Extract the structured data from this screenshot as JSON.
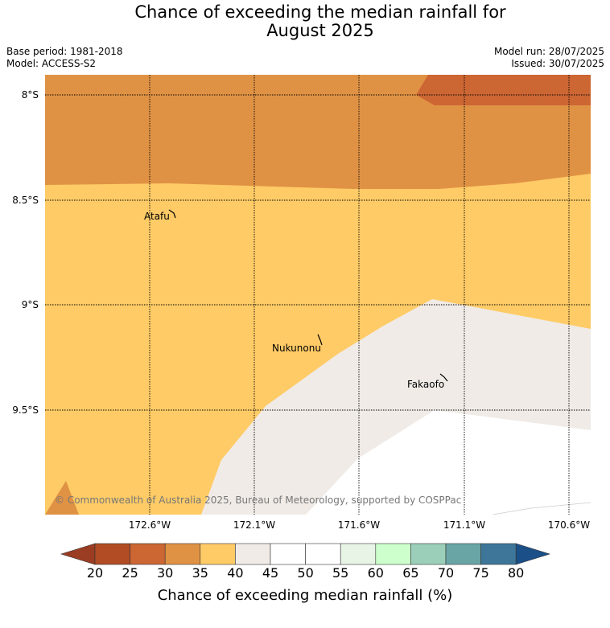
{
  "header": {
    "title_line1": "Chance of exceeding the median rainfall for",
    "title_line2": "August 2025",
    "base_period": "Base period: 1981-2018",
    "model": "Model: ACCESS-S2",
    "model_run": "Model run: 28/07/2025",
    "issued": "Issued: 30/07/2025"
  },
  "map": {
    "lat_labels": [
      "8°S",
      "8.5°S",
      "9°S",
      "9.5°S"
    ],
    "lon_labels": [
      "172.6°W",
      "172.1°W",
      "171.6°W",
      "171.1°W",
      "170.6°W"
    ],
    "places": [
      "Atafu",
      "Nukunonu",
      "Fakaofo"
    ],
    "copyright": "© Commonwealth of Australia 2025, Bureau of Meteorology, supported by COSPPac"
  },
  "colorbar": {
    "ticks": [
      "20",
      "25",
      "30",
      "35",
      "40",
      "45",
      "50",
      "55",
      "60",
      "65",
      "70",
      "75",
      "80"
    ],
    "label": "Chance of exceeding median rainfall (%)",
    "colors": [
      "#9a3d22",
      "#b14c24",
      "#cc6633",
      "#e09244",
      "#fecb66",
      "#f0ebe6",
      "#ffffff",
      "#ffffff",
      "#e8f5e6",
      "#ccffcc",
      "#9ccfb9",
      "#6aa5a6",
      "#3d7698",
      "#1b4f87"
    ]
  }
}
